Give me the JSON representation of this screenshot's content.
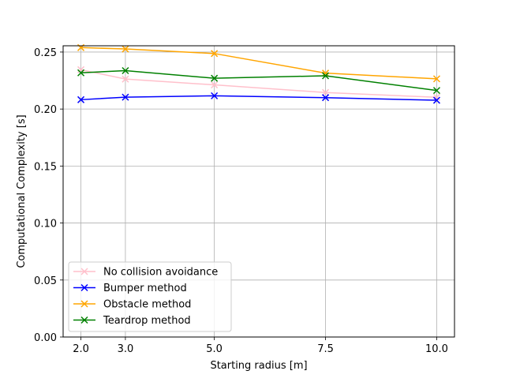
{
  "chart_data": {
    "type": "line",
    "title": "",
    "xlabel": "Starting radius [m]",
    "ylabel": "Computational Complexity [s]",
    "x": [
      2.0,
      3.0,
      5.0,
      7.5,
      10.0
    ],
    "x_tick_labels": [
      "2.0",
      "3.0",
      "5.0",
      "7.5",
      "10.0"
    ],
    "y_ticks": [
      0.0,
      0.05,
      0.1,
      0.15,
      0.2,
      0.25
    ],
    "y_tick_labels": [
      "0.00",
      "0.05",
      "0.10",
      "0.15",
      "0.20",
      "0.25"
    ],
    "xlim": [
      1.6,
      10.4
    ],
    "ylim": [
      0.0,
      0.2555
    ],
    "grid": true,
    "legend_position": "lower-left",
    "marker": "x",
    "series": [
      {
        "name": "No collision avoidance",
        "color": "#ffc0cb",
        "values": [
          0.2345,
          0.2263,
          0.2212,
          0.2145,
          0.2103
        ]
      },
      {
        "name": "Bumper method",
        "color": "#0000ff",
        "values": [
          0.2082,
          0.2104,
          0.2116,
          0.21,
          0.2077
        ]
      },
      {
        "name": "Obstacle method",
        "color": "#ffa500",
        "values": [
          0.2539,
          0.2527,
          0.2487,
          0.2315,
          0.2265
        ]
      },
      {
        "name": "Teardrop method",
        "color": "#008000",
        "values": [
          0.2318,
          0.2337,
          0.227,
          0.2292,
          0.2163
        ]
      }
    ]
  }
}
